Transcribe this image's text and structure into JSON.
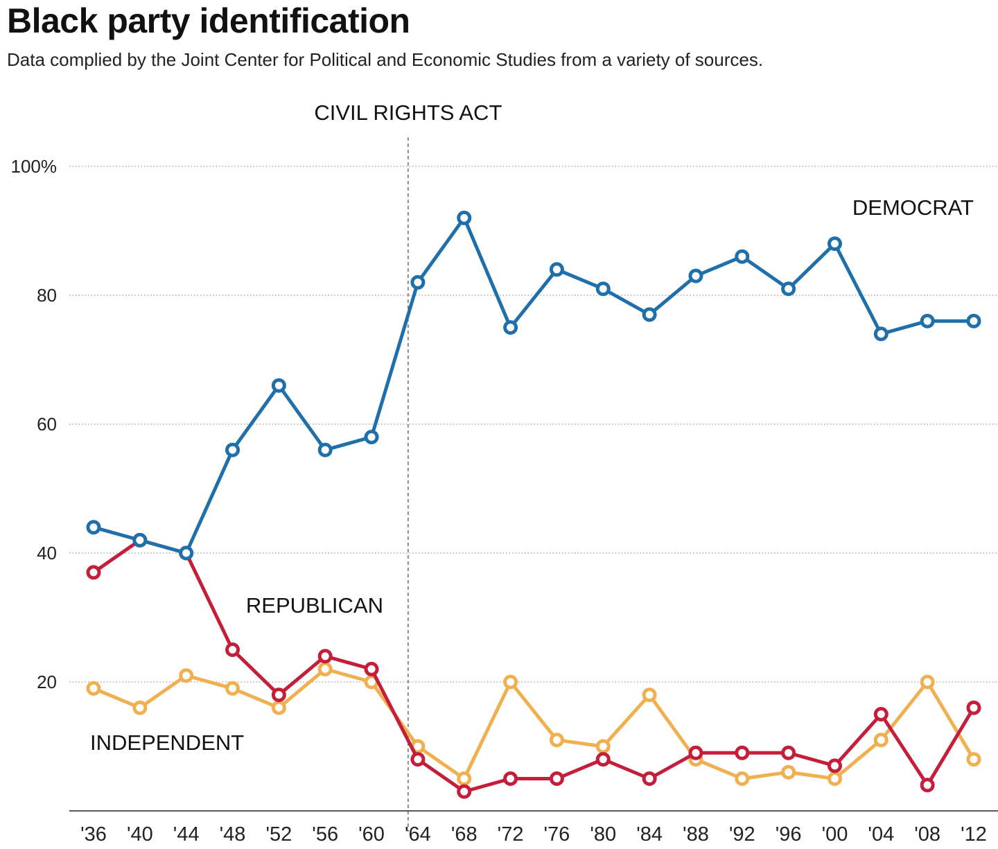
{
  "header": {
    "title": "Black party identification",
    "subtitle": "Data complied by the Joint Center for Political and Economic Studies from a variety of sources."
  },
  "chart_data": {
    "type": "line",
    "title": "Black party identification",
    "subtitle": "Data complied by the Joint Center for Political and Economic Studies from a variety of sources.",
    "xlabel": "",
    "ylabel": "",
    "x": [
      "'36",
      "'40",
      "'44",
      "'48",
      "'52",
      "'56",
      "'60",
      "'64",
      "'68",
      "'72",
      "'76",
      "'80",
      "'84",
      "'88",
      "'92",
      "'96",
      "'00",
      "'04",
      "'08",
      "'12"
    ],
    "ylim": [
      0,
      100
    ],
    "yticks": [
      20,
      40,
      60,
      80,
      100
    ],
    "ytick_labels": [
      "20",
      "40",
      "60",
      "80",
      "100%"
    ],
    "grid": "horizontal-dotted",
    "series": [
      {
        "name": "DEMOCRAT",
        "color": "#1f6fab",
        "values": [
          44,
          42,
          40,
          56,
          66,
          56,
          58,
          82,
          92,
          75,
          84,
          81,
          77,
          83,
          86,
          81,
          88,
          74,
          76,
          76
        ]
      },
      {
        "name": "REPUBLICAN",
        "color": "#c41e3a",
        "values": [
          37,
          42,
          40,
          25,
          18,
          24,
          22,
          8,
          3,
          5,
          5,
          8,
          5,
          9,
          9,
          9,
          7,
          15,
          4,
          16
        ]
      },
      {
        "name": "INDEPENDENT",
        "color": "#f0b050",
        "values": [
          19,
          16,
          21,
          19,
          16,
          22,
          20,
          10,
          5,
          20,
          11,
          10,
          18,
          8,
          5,
          6,
          5,
          11,
          20,
          8
        ]
      }
    ],
    "annotations": [
      {
        "text": "CIVIL RIGHTS ACT",
        "x": "'64",
        "style": "dashed-vertical-line"
      }
    ],
    "legend": "inline-labels"
  }
}
